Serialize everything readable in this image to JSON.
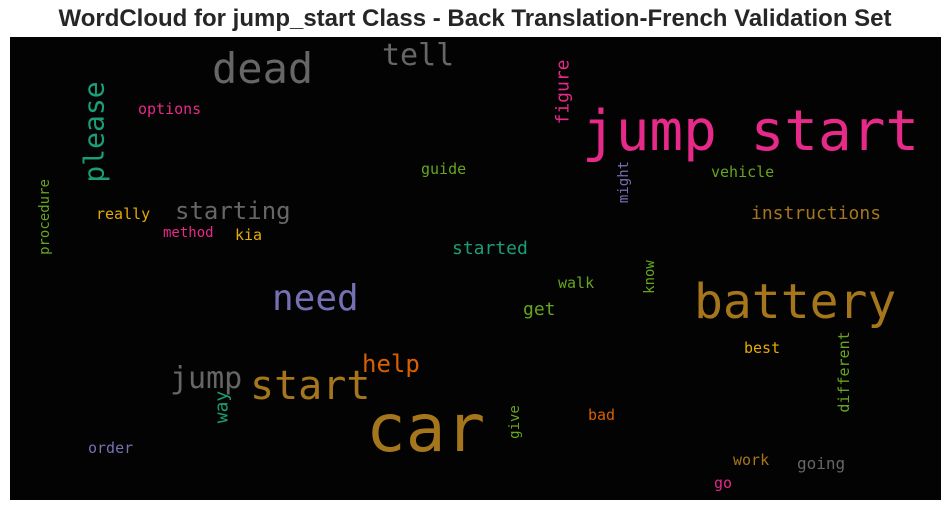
{
  "chart_data": {
    "type": "wordcloud",
    "title": "WordCloud for jump_start Class - Back Translation-French Validation Set",
    "background_color": "#030303",
    "words": [
      {
        "text": "jump start",
        "color": "#e7298a"
      },
      {
        "text": "battery",
        "color": "#a6761d"
      },
      {
        "text": "car",
        "color": "#a6761d"
      },
      {
        "text": "dead",
        "color": "#666666"
      },
      {
        "text": "start",
        "color": "#a6761d"
      },
      {
        "text": "need",
        "color": "#7570b3"
      },
      {
        "text": "please",
        "color": "#1b9e77"
      },
      {
        "text": "tell",
        "color": "#666666"
      },
      {
        "text": "jump",
        "color": "#666666"
      },
      {
        "text": "starting",
        "color": "#666666"
      },
      {
        "text": "help",
        "color": "#d95f02"
      },
      {
        "text": "instructions",
        "color": "#a6761d"
      },
      {
        "text": "started",
        "color": "#1b9e77"
      },
      {
        "text": "figure",
        "color": "#e7298a"
      },
      {
        "text": "options",
        "color": "#e7298a"
      },
      {
        "text": "vehicle",
        "color": "#66a61e"
      },
      {
        "text": "guide",
        "color": "#66a61e"
      },
      {
        "text": "might",
        "color": "#7570b3"
      },
      {
        "text": "really",
        "color": "#e6ab02"
      },
      {
        "text": "method",
        "color": "#e7298a"
      },
      {
        "text": "kia",
        "color": "#e6ab02"
      },
      {
        "text": "procedure",
        "color": "#66a61e"
      },
      {
        "text": "get",
        "color": "#66a61e"
      },
      {
        "text": "walk",
        "color": "#66a61e"
      },
      {
        "text": "know",
        "color": "#66a61e"
      },
      {
        "text": "way",
        "color": "#1b9e77"
      },
      {
        "text": "best",
        "color": "#e6ab02"
      },
      {
        "text": "different",
        "color": "#66a61e"
      },
      {
        "text": "order",
        "color": "#7570b3"
      },
      {
        "text": "give",
        "color": "#66a61e"
      },
      {
        "text": "bad",
        "color": "#d95f02"
      },
      {
        "text": "work",
        "color": "#a6761d"
      },
      {
        "text": "going",
        "color": "#666666"
      },
      {
        "text": "go",
        "color": "#e7298a"
      }
    ]
  }
}
